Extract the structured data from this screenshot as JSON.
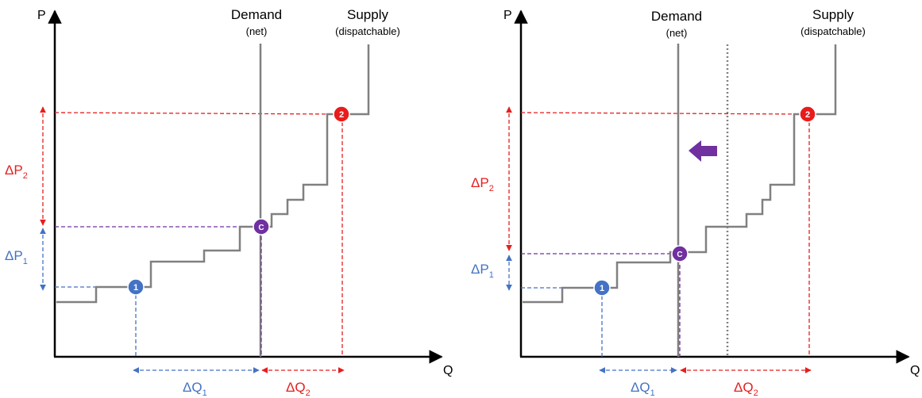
{
  "colors": {
    "axis": "#000000",
    "curve": "#808080",
    "red": "#e61e1e",
    "blue": "#4472c4",
    "purple": "#7030a0"
  },
  "left_panel": {
    "y_axis_label": "P",
    "x_axis_label": "Q",
    "demand_label": "Demand",
    "demand_sub": "(net)",
    "supply_label": "Supply",
    "supply_sub": "(dispatchable)",
    "point_1": "1",
    "point_2": "2",
    "point_c": "C",
    "dp2_main": "ΔP",
    "dp2_sub": "2",
    "dp1_main": "ΔP",
    "dp1_sub": "1",
    "dq1_main": "ΔQ",
    "dq1_sub": "1",
    "dq2_main": "ΔQ",
    "dq2_sub": "2"
  },
  "right_panel": {
    "y_axis_label": "P",
    "x_axis_label": "Q",
    "demand_label": "Demand",
    "demand_sub": "(net)",
    "supply_label": "Supply",
    "supply_sub": "(dispatchable)",
    "point_1": "1",
    "point_2": "2",
    "point_c": "C",
    "dp2_main": "ΔP",
    "dp2_sub": "2",
    "dp1_main": "ΔP",
    "dp1_sub": "1",
    "dq1_main": "ΔQ",
    "dq1_sub": "1",
    "dq2_main": "ΔQ",
    "dq2_sub": "2"
  }
}
